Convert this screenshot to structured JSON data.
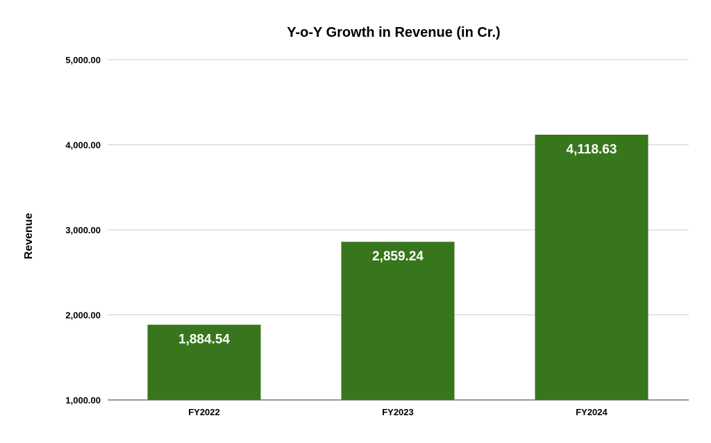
{
  "chart_data": {
    "type": "bar",
    "title": "Y-o-Y Growth in Revenue (in Cr.)",
    "xlabel": "",
    "ylabel": "Revenue",
    "categories": [
      "FY2022",
      "FY2023",
      "FY2024"
    ],
    "values": [
      1884.54,
      2859.24,
      4118.63
    ],
    "data_labels": [
      "1,884.54",
      "2,859.24",
      "4,118.63"
    ],
    "ylim": [
      1000,
      5000
    ],
    "yticks": [
      1000,
      2000,
      3000,
      4000,
      5000
    ],
    "ytick_labels": [
      "1,000.00",
      "2,000.00",
      "3,000.00",
      "4,000.00",
      "5,000.00"
    ],
    "grid": true,
    "legend": "none",
    "bar_color": "#38761d",
    "grid_color": "#cccccc"
  }
}
